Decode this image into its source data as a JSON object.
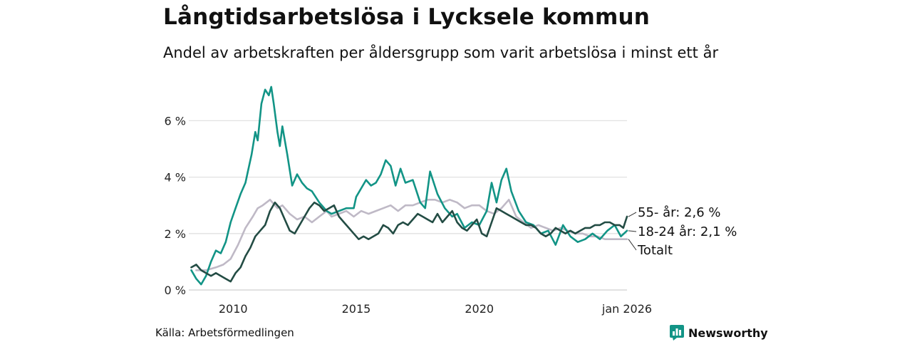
{
  "chart_data": {
    "type": "line",
    "title": "Långtidsarbetslösa i Lycksele kommun",
    "subtitle": "Andel av arbetskraften per åldersgrupp som varit arbetslösa i minst ett år",
    "xlabel": "",
    "ylabel": "",
    "xlim": [
      2008.2,
      2026.0
    ],
    "ylim": [
      0,
      7.3
    ],
    "grid": true,
    "y_ticks": [
      {
        "value": 0,
        "label": "0 %"
      },
      {
        "value": 2,
        "label": "2 %"
      },
      {
        "value": 4,
        "label": "4 %"
      },
      {
        "value": 6,
        "label": "6 %"
      }
    ],
    "x_ticks": [
      {
        "value": 2010,
        "label": "2010"
      },
      {
        "value": 2015,
        "label": "2015"
      },
      {
        "value": 2020,
        "label": "2020"
      },
      {
        "value": 2026.0,
        "label": "jan 2026"
      }
    ],
    "series": [
      {
        "name": "Totalt",
        "end_label": "Totalt",
        "color": "#bfb9c6",
        "x": [
          2008.5,
          2008.9,
          2009.3,
          2009.6,
          2009.9,
          2010.2,
          2010.5,
          2010.8,
          2011.0,
          2011.2,
          2011.5,
          2011.8,
          2012.0,
          2012.3,
          2012.6,
          2012.9,
          2013.2,
          2013.5,
          2013.8,
          2014.0,
          2014.3,
          2014.6,
          2014.9,
          2015.2,
          2015.5,
          2015.8,
          2016.1,
          2016.4,
          2016.7,
          2017.0,
          2017.3,
          2017.6,
          2017.9,
          2018.2,
          2018.5,
          2018.8,
          2019.1,
          2019.4,
          2019.7,
          2020.0,
          2020.3,
          2020.6,
          2020.9,
          2021.2,
          2021.5,
          2021.8,
          2022.1,
          2022.4,
          2022.7,
          2023.0,
          2023.3,
          2023.6,
          2023.9,
          2024.2,
          2024.5,
          2024.8,
          2025.1,
          2025.4,
          2025.7,
          2026.0
        ],
        "values": [
          0.7,
          0.7,
          0.8,
          0.9,
          1.1,
          1.6,
          2.2,
          2.6,
          2.9,
          3.0,
          3.2,
          2.9,
          3.0,
          2.7,
          2.5,
          2.6,
          2.4,
          2.6,
          2.8,
          2.6,
          2.7,
          2.8,
          2.6,
          2.8,
          2.7,
          2.8,
          2.9,
          3.0,
          2.8,
          3.0,
          3.0,
          3.1,
          3.2,
          3.2,
          3.1,
          3.2,
          3.1,
          2.9,
          3.0,
          3.0,
          2.8,
          2.7,
          2.9,
          3.2,
          2.6,
          2.4,
          2.2,
          2.3,
          2.2,
          2.1,
          2.2,
          2.1,
          2.0,
          2.0,
          1.9,
          1.9,
          1.8,
          1.8,
          1.8,
          1.8
        ]
      },
      {
        "name": "18-24 år",
        "end_label": "18-24 år: 2,1 %",
        "color": "#129486",
        "x": [
          2008.3,
          2008.5,
          2008.7,
          2008.9,
          2009.1,
          2009.3,
          2009.5,
          2009.7,
          2009.9,
          2010.1,
          2010.3,
          2010.5,
          2010.6,
          2010.75,
          2010.9,
          2011.0,
          2011.15,
          2011.3,
          2011.45,
          2011.55,
          2011.65,
          2011.8,
          2011.9,
          2012.0,
          2012.2,
          2012.4,
          2012.6,
          2012.8,
          2013.0,
          2013.2,
          2013.5,
          2013.8,
          2014.0,
          2014.3,
          2014.6,
          2014.9,
          2015.0,
          2015.2,
          2015.4,
          2015.6,
          2015.8,
          2016.0,
          2016.2,
          2016.4,
          2016.6,
          2016.8,
          2017.0,
          2017.3,
          2017.6,
          2017.8,
          2018.0,
          2018.3,
          2018.6,
          2018.9,
          2019.1,
          2019.4,
          2019.7,
          2020.0,
          2020.3,
          2020.5,
          2020.7,
          2020.9,
          2021.1,
          2021.3,
          2021.6,
          2021.9,
          2022.2,
          2022.5,
          2022.8,
          2023.1,
          2023.4,
          2023.7,
          2024.0,
          2024.3,
          2024.6,
          2024.9,
          2025.2,
          2025.5,
          2025.75,
          2026.0
        ],
        "values": [
          0.7,
          0.4,
          0.2,
          0.5,
          1.0,
          1.4,
          1.3,
          1.7,
          2.4,
          2.9,
          3.4,
          3.8,
          4.2,
          4.8,
          5.6,
          5.3,
          6.6,
          7.1,
          6.9,
          7.2,
          6.6,
          5.6,
          5.1,
          5.8,
          4.8,
          3.7,
          4.1,
          3.8,
          3.6,
          3.5,
          3.1,
          2.8,
          2.7,
          2.8,
          2.9,
          2.9,
          3.3,
          3.6,
          3.9,
          3.7,
          3.8,
          4.1,
          4.6,
          4.4,
          3.7,
          4.3,
          3.8,
          3.9,
          3.1,
          2.9,
          4.2,
          3.4,
          2.9,
          2.6,
          2.7,
          2.2,
          2.4,
          2.3,
          2.8,
          3.8,
          3.1,
          3.9,
          4.3,
          3.5,
          2.8,
          2.4,
          2.3,
          2.0,
          2.1,
          1.6,
          2.3,
          1.9,
          1.7,
          1.8,
          2.0,
          1.8,
          2.1,
          2.3,
          1.9,
          2.1
        ]
      },
      {
        "name": "55- år",
        "end_label": "55- år: 2,6 %",
        "color": "#234c44",
        "x": [
          2008.3,
          2008.5,
          2008.7,
          2008.9,
          2009.1,
          2009.3,
          2009.5,
          2009.7,
          2009.9,
          2010.1,
          2010.3,
          2010.5,
          2010.7,
          2010.9,
          2011.1,
          2011.3,
          2011.5,
          2011.7,
          2011.9,
          2012.1,
          2012.3,
          2012.5,
          2012.7,
          2012.9,
          2013.1,
          2013.3,
          2013.5,
          2013.7,
          2013.9,
          2014.1,
          2014.3,
          2014.5,
          2014.7,
          2014.9,
          2015.1,
          2015.3,
          2015.5,
          2015.7,
          2015.9,
          2016.1,
          2016.3,
          2016.5,
          2016.7,
          2016.9,
          2017.1,
          2017.3,
          2017.5,
          2017.7,
          2017.9,
          2018.1,
          2018.3,
          2018.5,
          2018.7,
          2018.9,
          2019.1,
          2019.3,
          2019.5,
          2019.7,
          2019.9,
          2020.1,
          2020.3,
          2020.5,
          2020.7,
          2020.9,
          2021.1,
          2021.3,
          2021.5,
          2021.7,
          2021.9,
          2022.1,
          2022.3,
          2022.5,
          2022.7,
          2022.9,
          2023.1,
          2023.3,
          2023.5,
          2023.7,
          2023.9,
          2024.1,
          2024.3,
          2024.5,
          2024.7,
          2024.9,
          2025.1,
          2025.3,
          2025.5,
          2025.7,
          2025.85,
          2026.0
        ],
        "values": [
          0.8,
          0.9,
          0.7,
          0.6,
          0.5,
          0.6,
          0.5,
          0.4,
          0.3,
          0.6,
          0.8,
          1.2,
          1.5,
          1.9,
          2.1,
          2.3,
          2.8,
          3.1,
          2.9,
          2.5,
          2.1,
          2.0,
          2.3,
          2.6,
          2.9,
          3.1,
          3.0,
          2.8,
          2.9,
          3.0,
          2.6,
          2.4,
          2.2,
          2.0,
          1.8,
          1.9,
          1.8,
          1.9,
          2.0,
          2.3,
          2.2,
          2.0,
          2.3,
          2.4,
          2.3,
          2.5,
          2.7,
          2.6,
          2.5,
          2.4,
          2.7,
          2.4,
          2.6,
          2.8,
          2.4,
          2.2,
          2.1,
          2.3,
          2.5,
          2.0,
          1.9,
          2.4,
          2.9,
          2.8,
          2.7,
          2.6,
          2.5,
          2.4,
          2.3,
          2.3,
          2.2,
          2.0,
          1.9,
          2.0,
          2.2,
          2.1,
          2.0,
          2.1,
          2.0,
          2.1,
          2.2,
          2.2,
          2.3,
          2.3,
          2.4,
          2.4,
          2.3,
          2.3,
          2.2,
          2.6
        ]
      }
    ]
  },
  "source": "Källa: Arbetsförmedlingen",
  "logo": {
    "text": "Newsworthy",
    "color": "#129486"
  }
}
